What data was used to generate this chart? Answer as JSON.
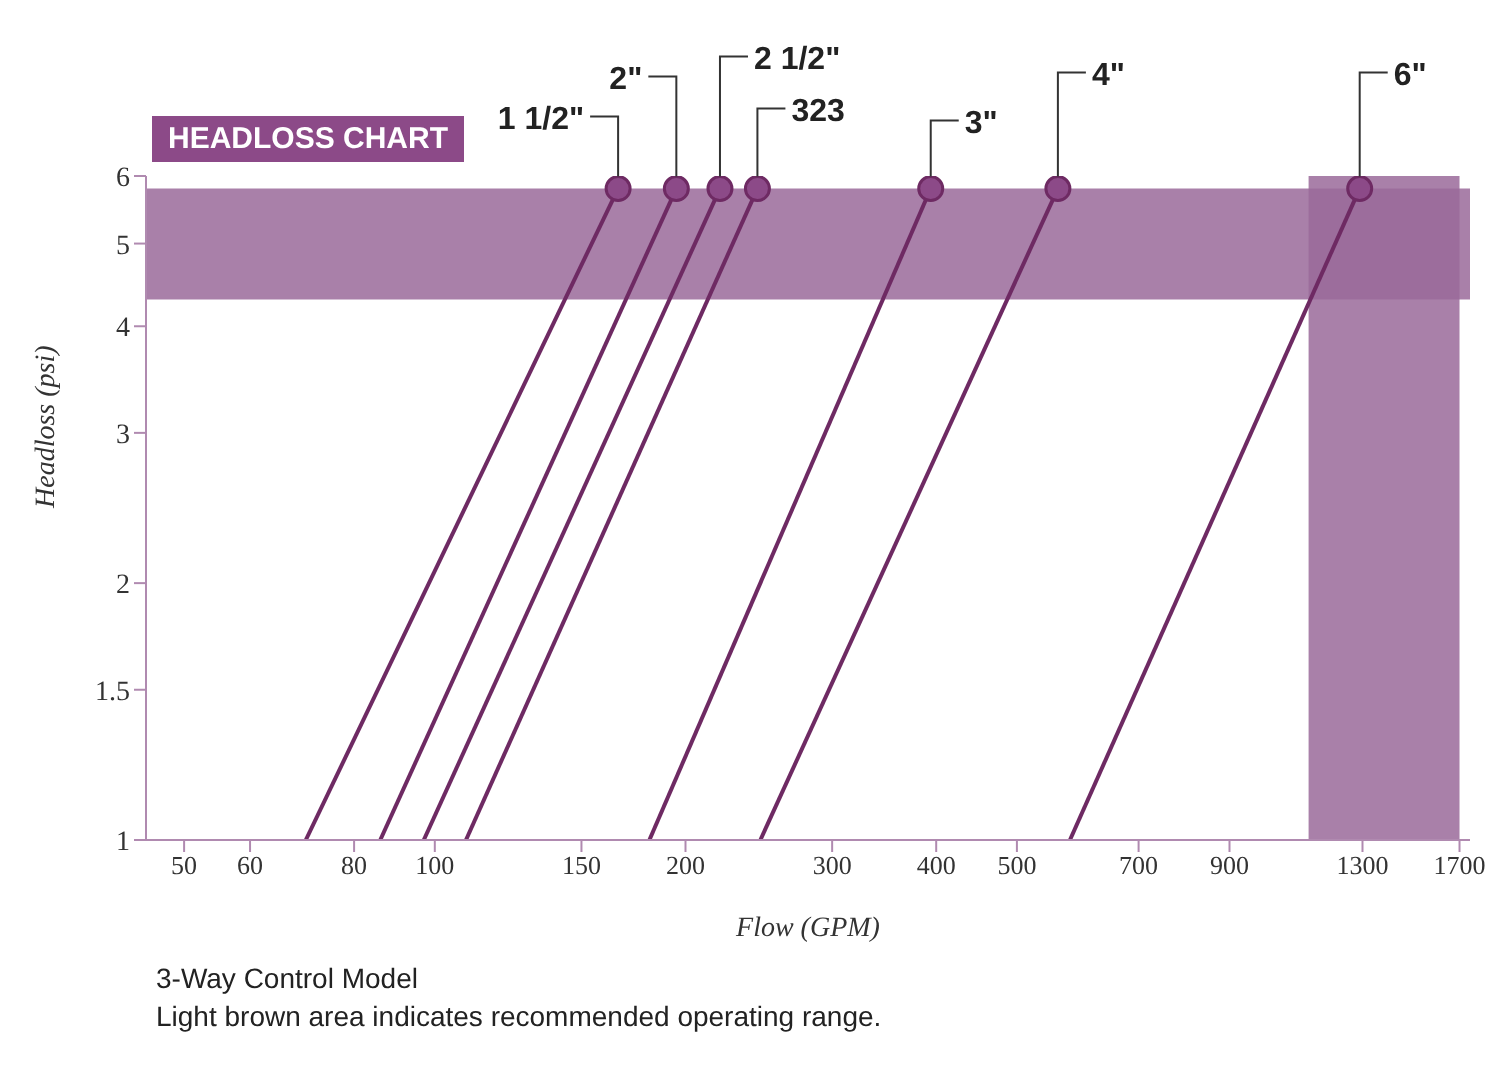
{
  "chart_data": {
    "type": "line",
    "title": "HEADLOSS CHART",
    "xlabel": "Flow (GPM)",
    "ylabel": "Headloss (psi)",
    "log": "xy",
    "marker": "circle",
    "xlim": [
      45,
      1750
    ],
    "ylim": [
      1,
      6
    ],
    "xticks": [
      50,
      60,
      80,
      100,
      150,
      200,
      300,
      400,
      500,
      700,
      900,
      1300,
      1700
    ],
    "yticks": [
      1,
      1.5,
      2,
      3,
      4,
      5,
      6
    ],
    "bands": [
      {
        "axis": "y",
        "from": 4.3,
        "to": 5.8,
        "color": "#9a6a9a"
      },
      {
        "axis": "x",
        "from": 1120,
        "to": 1700,
        "color": "#9a6a9a"
      }
    ],
    "series": [
      {
        "name": "1 1/2\"",
        "color": "#6e2a63",
        "x": [
          70,
          166
        ],
        "values": [
          1,
          5.8
        ]
      },
      {
        "name": "2\"",
        "color": "#6e2a63",
        "x": [
          86,
          195
        ],
        "values": [
          1,
          5.8
        ]
      },
      {
        "name": "2 1/2\"",
        "color": "#6e2a63",
        "x": [
          97,
          220
        ],
        "values": [
          1,
          5.8
        ]
      },
      {
        "name": "323",
        "color": "#6e2a63",
        "x": [
          109,
          244
        ],
        "values": [
          1,
          5.8
        ]
      },
      {
        "name": "3\"",
        "color": "#6e2a63",
        "x": [
          181,
          394
        ],
        "values": [
          1,
          5.8
        ]
      },
      {
        "name": "4\"",
        "color": "#6e2a63",
        "x": [
          246,
          560
        ],
        "values": [
          1,
          5.8
        ]
      },
      {
        "name": "6\"",
        "color": "#6e2a63",
        "x": [
          579,
          1290
        ],
        "values": [
          1,
          5.8
        ]
      }
    ],
    "annotations": [
      "3-Way Control Model",
      "Light brown area indicates recommended operating range."
    ]
  }
}
